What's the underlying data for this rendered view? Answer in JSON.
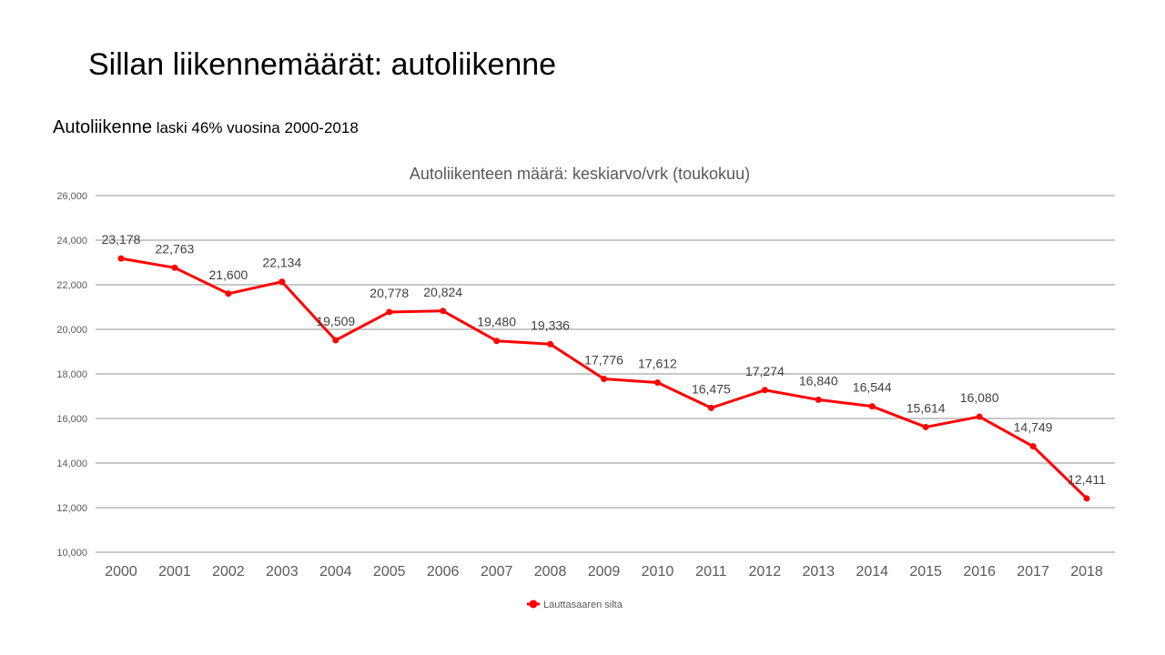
{
  "slide": {
    "title": "Sillan liikennemäärät: autoliikenne",
    "subtitle_main": "Autoliikenne",
    "subtitle_rest": " laski 46% vuosina 2000-2018"
  },
  "chart_data": {
    "type": "line",
    "title": "Autoliikenteen määrä: keskiarvo/vrk (toukokuu)",
    "xlabel": "",
    "ylabel": "",
    "categories": [
      "2000",
      "2001",
      "2002",
      "2003",
      "2004",
      "2005",
      "2006",
      "2007",
      "2008",
      "2009",
      "2010",
      "2011",
      "2012",
      "2013",
      "2014",
      "2015",
      "2016",
      "2017",
      "2018"
    ],
    "series": [
      {
        "name": "Lauttasaaren silta",
        "color": "#ff0000",
        "values": [
          23178,
          22763,
          21600,
          22134,
          19509,
          20778,
          20824,
          19480,
          19336,
          17776,
          17612,
          16475,
          17274,
          16840,
          16544,
          15614,
          16080,
          14749,
          12411
        ]
      }
    ],
    "ylim": [
      10000,
      26000
    ],
    "yticks": [
      10000,
      12000,
      14000,
      16000,
      18000,
      20000,
      22000,
      24000,
      26000
    ],
    "grid": true,
    "legend": "bottom"
  }
}
